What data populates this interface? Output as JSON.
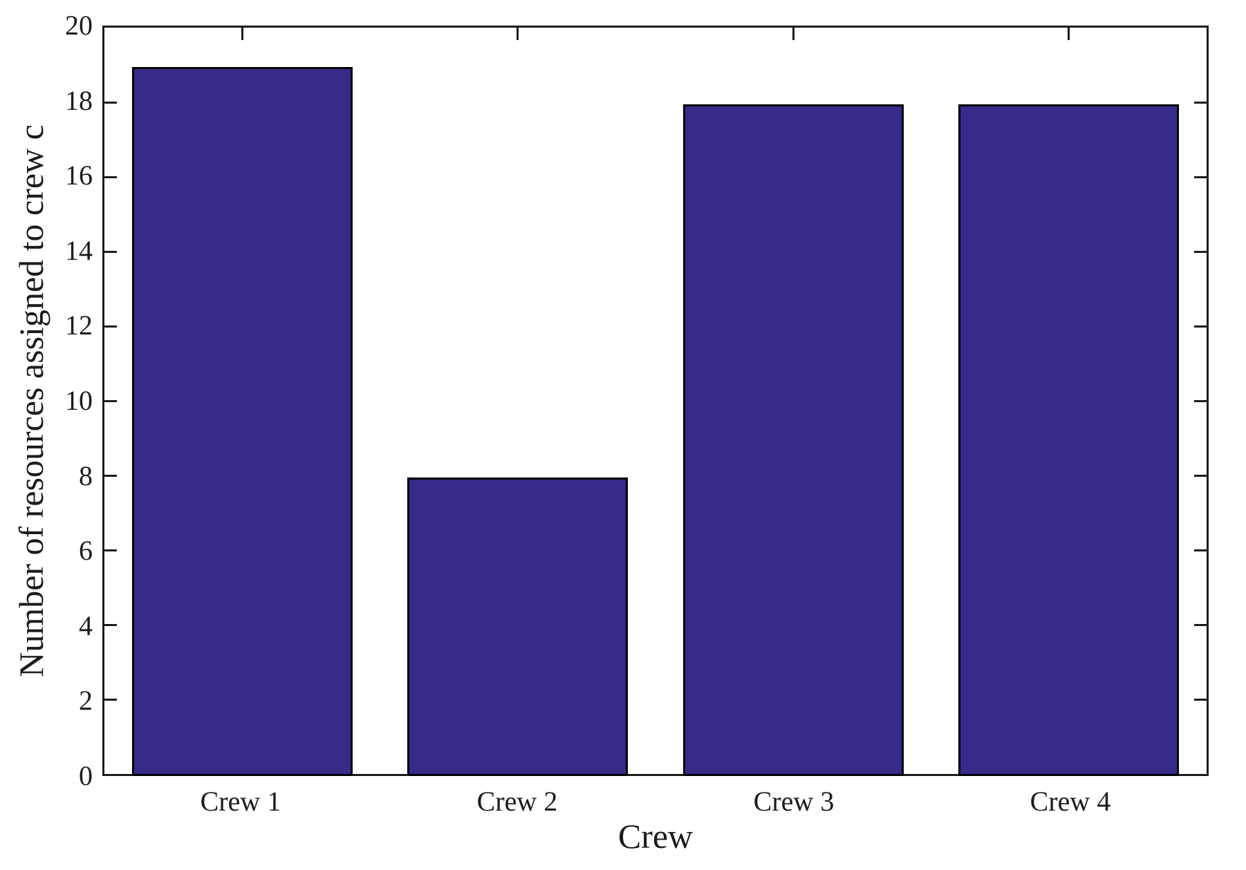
{
  "chart_data": {
    "type": "bar",
    "title": "",
    "xlabel": "Crew",
    "ylabel": "Number of resources assigned to crew c",
    "categories": [
      "Crew 1",
      "Crew 2",
      "Crew 3",
      "Crew 4"
    ],
    "values": [
      19,
      8,
      18,
      18
    ],
    "ylim": [
      0,
      20
    ],
    "ytick_step": 2,
    "ytick_labels": [
      "0",
      "2",
      "4",
      "6",
      "8",
      "10",
      "12",
      "14",
      "16",
      "18",
      "20"
    ],
    "bar_width_fraction": 0.8,
    "grid": false,
    "legend": null,
    "colors": {
      "bar_fill": "#362A8B",
      "bar_edge": "#000000",
      "axis": "#1c1c1c",
      "background": "#ffffff"
    }
  }
}
